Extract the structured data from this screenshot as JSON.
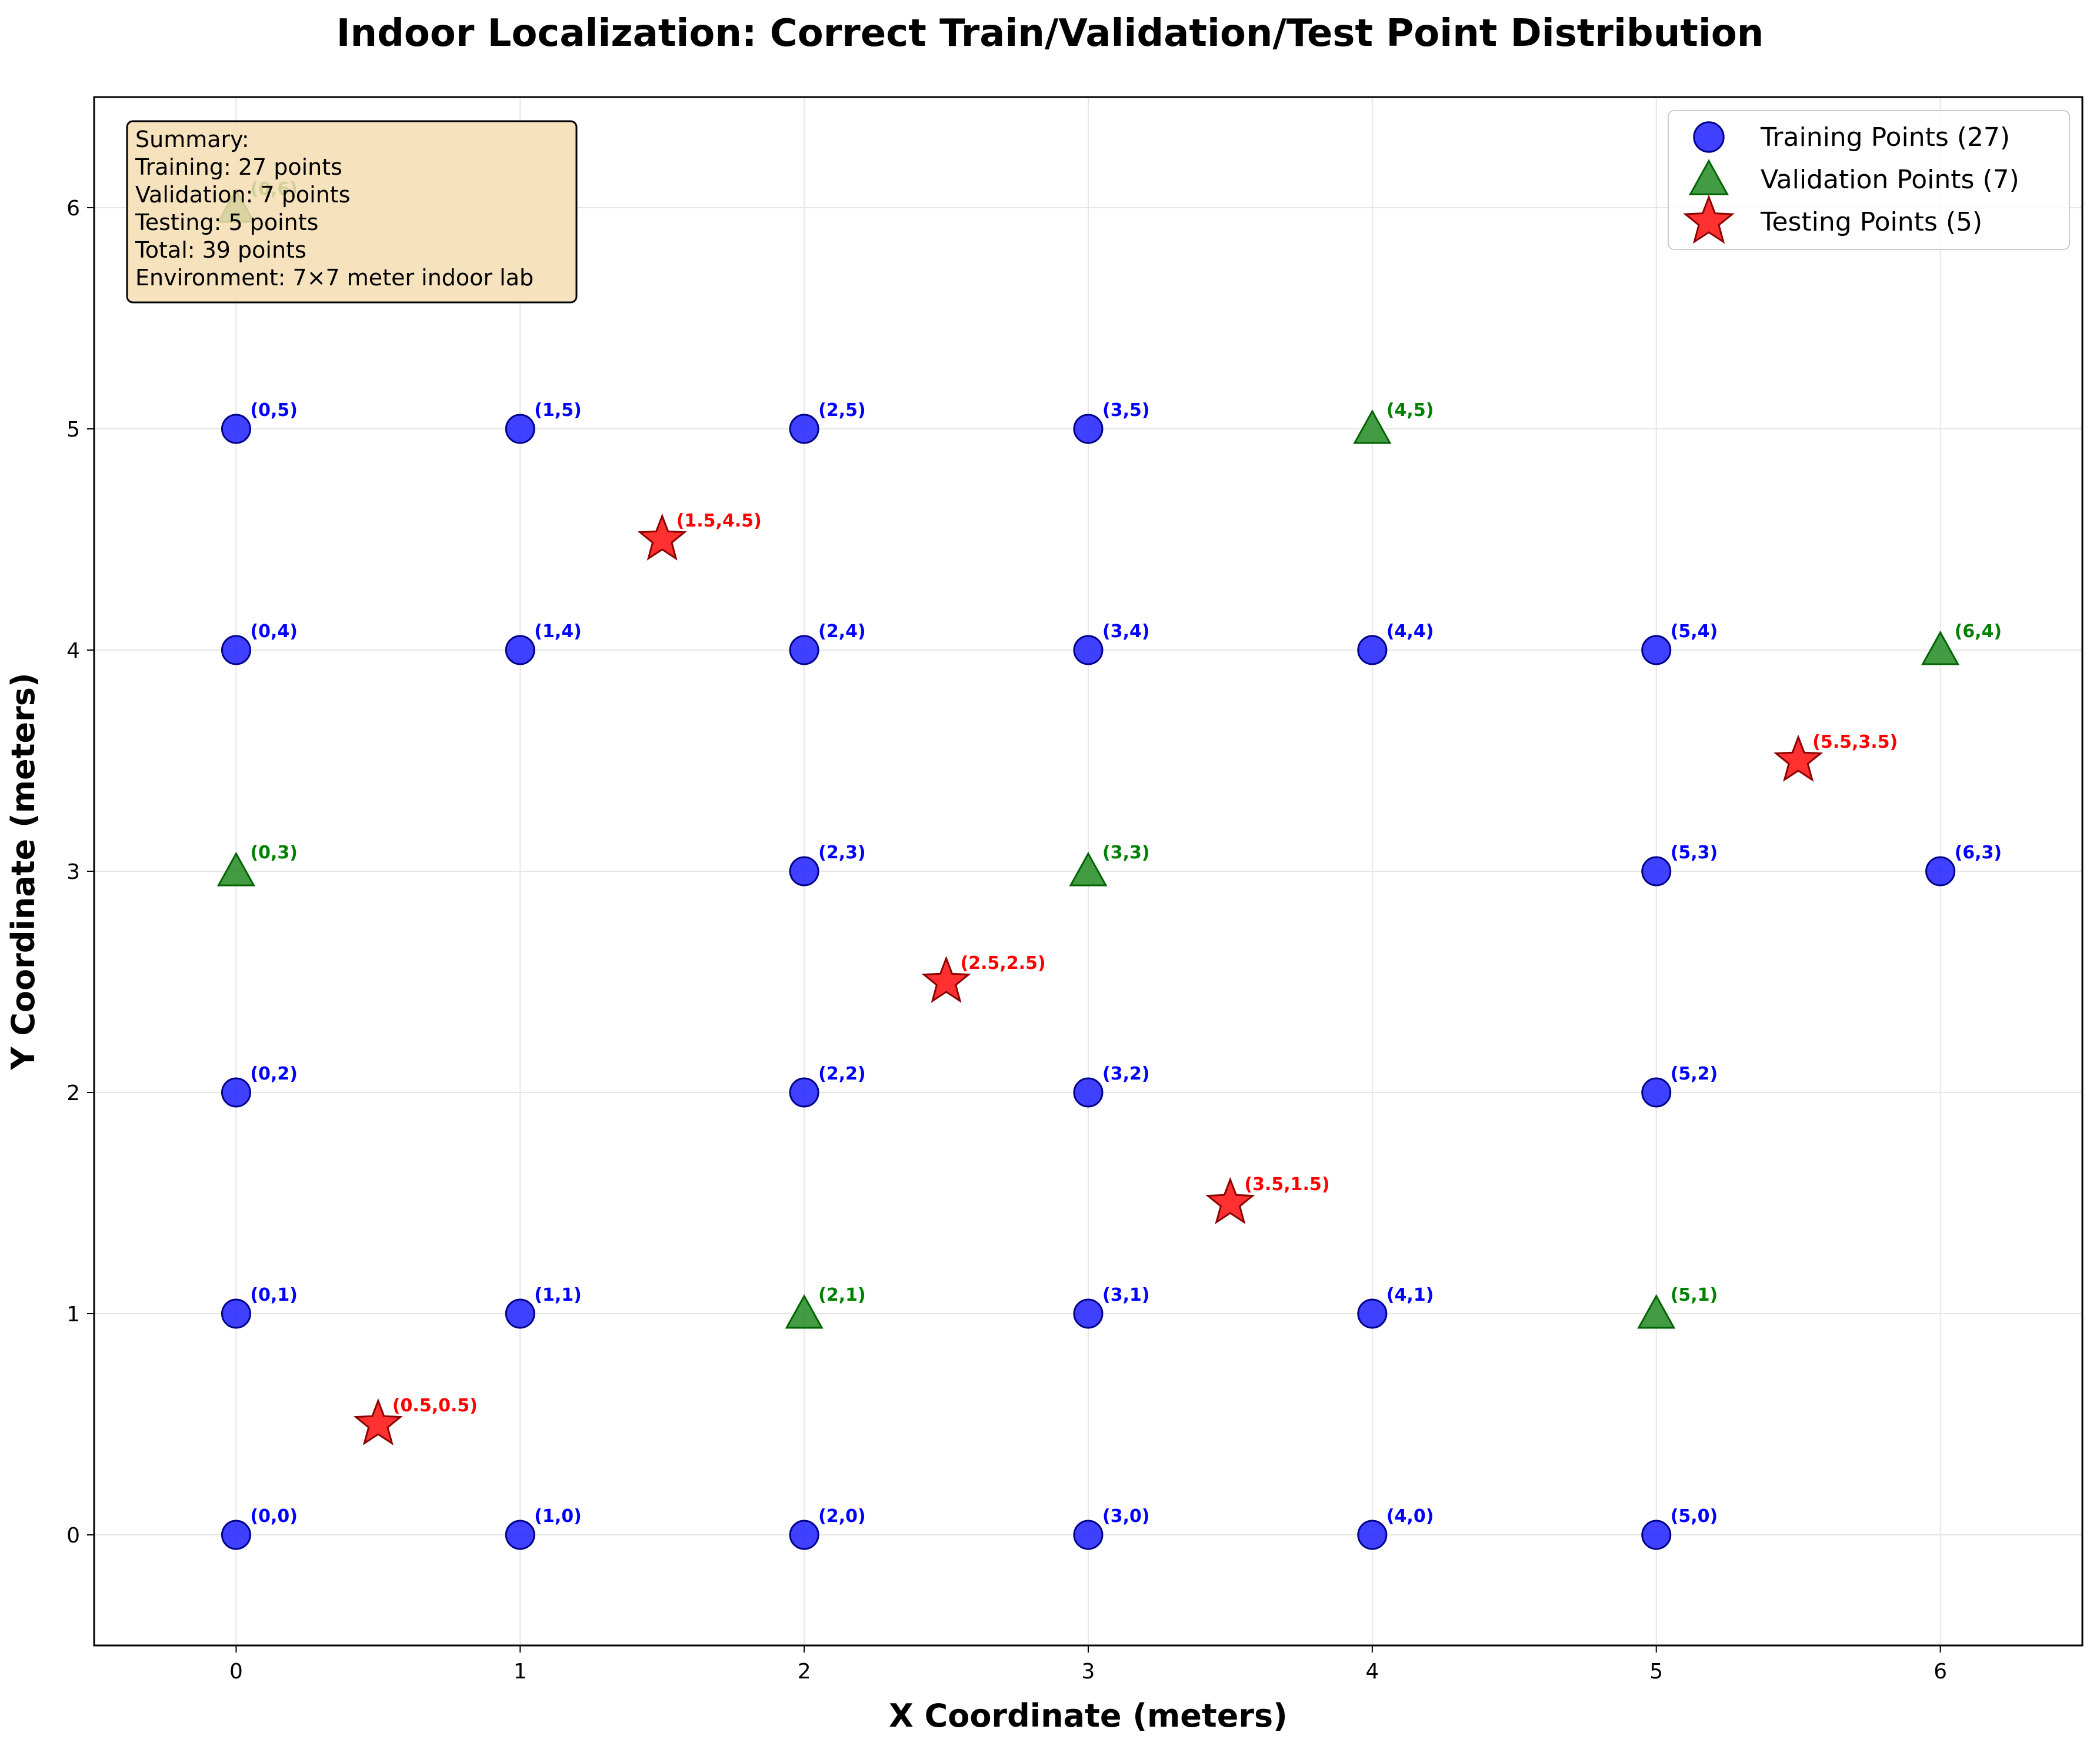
{
  "chart_data": {
    "type": "scatter",
    "title": "Indoor Localization: Correct Train/Validation/Test Point Distribution",
    "xlabel": "X Coordinate (meters)",
    "ylabel": "Y Coordinate (meters)",
    "xlim": [
      -0.5,
      6.5
    ],
    "ylim": [
      -0.5,
      6.5
    ],
    "xticks": [
      "0",
      "1",
      "2",
      "3",
      "4",
      "5",
      "6"
    ],
    "yticks": [
      "0",
      "1",
      "2",
      "3",
      "4",
      "5",
      "6"
    ],
    "grid": true,
    "legend_position": "top-right",
    "series": [
      {
        "name": "Training Points (27)",
        "marker": "circle",
        "color": "#0000ff",
        "label_color": "#0000ff",
        "points": [
          {
            "x": 0,
            "y": 0,
            "label": "(0,0)"
          },
          {
            "x": 1,
            "y": 0,
            "label": "(1,0)"
          },
          {
            "x": 2,
            "y": 0,
            "label": "(2,0)"
          },
          {
            "x": 3,
            "y": 0,
            "label": "(3,0)"
          },
          {
            "x": 4,
            "y": 0,
            "label": "(4,0)"
          },
          {
            "x": 5,
            "y": 0,
            "label": "(5,0)"
          },
          {
            "x": 0,
            "y": 1,
            "label": "(0,1)"
          },
          {
            "x": 1,
            "y": 1,
            "label": "(1,1)"
          },
          {
            "x": 3,
            "y": 1,
            "label": "(3,1)"
          },
          {
            "x": 4,
            "y": 1,
            "label": "(4,1)"
          },
          {
            "x": 0,
            "y": 2,
            "label": "(0,2)"
          },
          {
            "x": 2,
            "y": 2,
            "label": "(2,2)"
          },
          {
            "x": 3,
            "y": 2,
            "label": "(3,2)"
          },
          {
            "x": 5,
            "y": 2,
            "label": "(5,2)"
          },
          {
            "x": 2,
            "y": 3,
            "label": "(2,3)"
          },
          {
            "x": 5,
            "y": 3,
            "label": "(5,3)"
          },
          {
            "x": 6,
            "y": 3,
            "label": "(6,3)"
          },
          {
            "x": 0,
            "y": 4,
            "label": "(0,4)"
          },
          {
            "x": 1,
            "y": 4,
            "label": "(1,4)"
          },
          {
            "x": 2,
            "y": 4,
            "label": "(2,4)"
          },
          {
            "x": 3,
            "y": 4,
            "label": "(3,4)"
          },
          {
            "x": 4,
            "y": 4,
            "label": "(4,4)"
          },
          {
            "x": 5,
            "y": 4,
            "label": "(5,4)"
          },
          {
            "x": 0,
            "y": 5,
            "label": "(0,5)"
          },
          {
            "x": 1,
            "y": 5,
            "label": "(1,5)"
          },
          {
            "x": 2,
            "y": 5,
            "label": "(2,5)"
          },
          {
            "x": 3,
            "y": 5,
            "label": "(3,5)"
          }
        ]
      },
      {
        "name": "Validation Points (7)",
        "marker": "triangle",
        "color": "#008000",
        "label_color": "#008000",
        "points": [
          {
            "x": 0,
            "y": 6,
            "label": "(0,6)"
          },
          {
            "x": 4,
            "y": 5,
            "label": "(4,5)"
          },
          {
            "x": 6,
            "y": 4,
            "label": "(6,4)"
          },
          {
            "x": 0,
            "y": 3,
            "label": "(0,3)"
          },
          {
            "x": 3,
            "y": 3,
            "label": "(3,3)"
          },
          {
            "x": 2,
            "y": 1,
            "label": "(2,1)"
          },
          {
            "x": 5,
            "y": 1,
            "label": "(5,1)"
          }
        ]
      },
      {
        "name": "Testing Points (5)",
        "marker": "star",
        "color": "#ff0000",
        "label_color": "#ff0000",
        "points": [
          {
            "x": 0.5,
            "y": 0.5,
            "label": "(0.5,0.5)"
          },
          {
            "x": 1.5,
            "y": 4.5,
            "label": "(1.5,4.5)"
          },
          {
            "x": 2.5,
            "y": 2.5,
            "label": "(2.5,2.5)"
          },
          {
            "x": 3.5,
            "y": 1.5,
            "label": "(3.5,1.5)"
          },
          {
            "x": 5.5,
            "y": 3.5,
            "label": "(5.5,3.5)"
          }
        ]
      }
    ],
    "summary_box": [
      "Summary:",
      "Training: 27 points",
      "Validation: 7 points",
      "Testing: 5 points",
      "Total: 39 points",
      "Environment: 7×7 meter indoor lab"
    ]
  },
  "colors": {
    "training_fill": "#1f1fff",
    "validation_fill": "#228b22",
    "testing_fill": "#ff1a1a",
    "summary_bg": "#f5deb3",
    "grid": "#e6e6e6"
  }
}
